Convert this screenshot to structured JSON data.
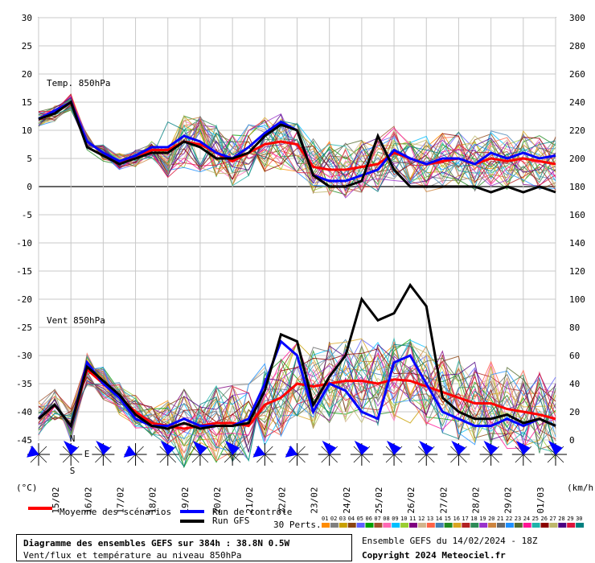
{
  "chart_data": {
    "type": "line",
    "left_axis": {
      "unit_label": "(°C)",
      "ticks": [
        30,
        25,
        20,
        15,
        10,
        5,
        0,
        -5,
        -10,
        -15,
        -20,
        -25,
        -30,
        -35,
        -40,
        -45
      ],
      "range": [
        -45,
        30
      ]
    },
    "right_axis": {
      "unit_label": "(km/h)",
      "ticks": [
        300,
        280,
        260,
        240,
        220,
        200,
        180,
        160,
        140,
        120,
        100,
        80,
        60,
        40,
        20,
        0
      ],
      "range": [
        0,
        300
      ]
    },
    "dates": [
      "15/02",
      "16/02",
      "17/02",
      "18/02",
      "19/02",
      "20/02",
      "21/02",
      "22/02",
      "23/02",
      "24/02",
      "25/02",
      "26/02",
      "27/02",
      "28/02",
      "29/02",
      "01/03"
    ],
    "panels": [
      {
        "label": "Temp. 850hPa",
        "unit": "°C",
        "series": [
          {
            "name": "Moyenne des scénarios",
            "color": "#ff0000",
            "values": [
              12,
              13,
              15,
              8,
              6,
              4.5,
              5,
              6.5,
              6.5,
              8,
              7.5,
              6,
              4.5,
              6,
              7.5,
              8,
              7.5,
              3.5,
              3,
              3,
              3.5,
              4,
              6,
              5,
              4,
              4.5,
              5,
              4,
              5,
              4.5,
              5,
              4.5,
              4
            ]
          },
          {
            "name": "Run de contrôle",
            "color": "#0000ff",
            "values": [
              12,
              13.5,
              15,
              8,
              6,
              4.5,
              5.5,
              7,
              7,
              9,
              8,
              6,
              5,
              7,
              9.5,
              11.5,
              10,
              2,
              1,
              1,
              2,
              3,
              6.5,
              5,
              4,
              5,
              5,
              4,
              6,
              5,
              6,
              5,
              5.5
            ]
          },
          {
            "name": "Run GFS",
            "color": "#000000",
            "values": [
              12,
              13,
              15,
              7,
              5.5,
              4,
              5,
              6,
              6,
              8,
              7,
              5,
              5,
              6,
              9,
              11,
              10,
              2,
              0,
              0,
              1,
              9,
              3,
              0,
              0,
              0,
              0,
              0,
              -1,
              0,
              -1,
              0,
              -1
            ]
          }
        ]
      },
      {
        "label": "Vent 850hPa",
        "unit": "km/h",
        "series": [
          {
            "name": "Moyenne des scénarios",
            "color": "#ff0000",
            "values": [
              15,
              25,
              10,
              50,
              40,
              30,
              20,
              12,
              10,
              8,
              10,
              12,
              12,
              10,
              25,
              30,
              40,
              38,
              40,
              42,
              42,
              40,
              43,
              42,
              38,
              34,
              30,
              26,
              26,
              22,
              20,
              18,
              15
            ]
          },
          {
            "name": "Run de contrôle",
            "color": "#0000ff",
            "values": [
              15,
              25,
              10,
              55,
              40,
              30,
              15,
              10,
              10,
              15,
              10,
              10,
              10,
              15,
              40,
              70,
              60,
              20,
              40,
              35,
              20,
              15,
              55,
              60,
              40,
              20,
              15,
              10,
              10,
              15,
              10,
              15,
              10
            ]
          },
          {
            "name": "Run GFS",
            "color": "#000000",
            "values": [
              15,
              25,
              10,
              52,
              42,
              32,
              18,
              10,
              8,
              12,
              8,
              10,
              10,
              12,
              35,
              75,
              70,
              25,
              45,
              60,
              100,
              85,
              90,
              110,
              95,
              30,
              20,
              15,
              15,
              18,
              12,
              15,
              10
            ]
          }
        ]
      }
    ],
    "grid": true,
    "legend": {
      "mean": "Moyenne des scénarios",
      "control": "Run de contrôle",
      "gfs": "Run GFS",
      "perts_label": "30 Perts.",
      "pert_numbers": [
        "01",
        "02",
        "03",
        "04",
        "05",
        "06",
        "07",
        "08",
        "09",
        "10",
        "11",
        "12",
        "13",
        "14",
        "15",
        "16",
        "17",
        "18",
        "19",
        "20",
        "21",
        "22",
        "23",
        "24",
        "25",
        "26",
        "27",
        "28",
        "29",
        "30"
      ],
      "pert_colors": [
        "#ff8c00",
        "#808080",
        "#c8a000",
        "#8b4513",
        "#6060ff",
        "#00a000",
        "#a0522d",
        "#ff69b4",
        "#00bfff",
        "#9acd32",
        "#800080",
        "#d2b48c",
        "#ff6347",
        "#4682b4",
        "#228b22",
        "#daa520",
        "#b22222",
        "#2e8b57",
        "#9932cc",
        "#cd853f",
        "#696969",
        "#1e90ff",
        "#556b2f",
        "#ff1493",
        "#20b2aa",
        "#8b0000",
        "#bdb76b",
        "#4b0082",
        "#dc143c",
        "#008080"
      ]
    }
  },
  "info": {
    "title": "Diagramme des ensembles GEFS sur 384h : 38.8N 0.5W",
    "subtitle": "Vent/flux et température au niveau 850hPa",
    "ensemble": "Ensemble GEFS du 14/02/2024 - 18Z",
    "copyright": "Copyright 2024 Meteociel.fr"
  },
  "compass": {
    "n": "N",
    "e": "E",
    "s": "S"
  }
}
